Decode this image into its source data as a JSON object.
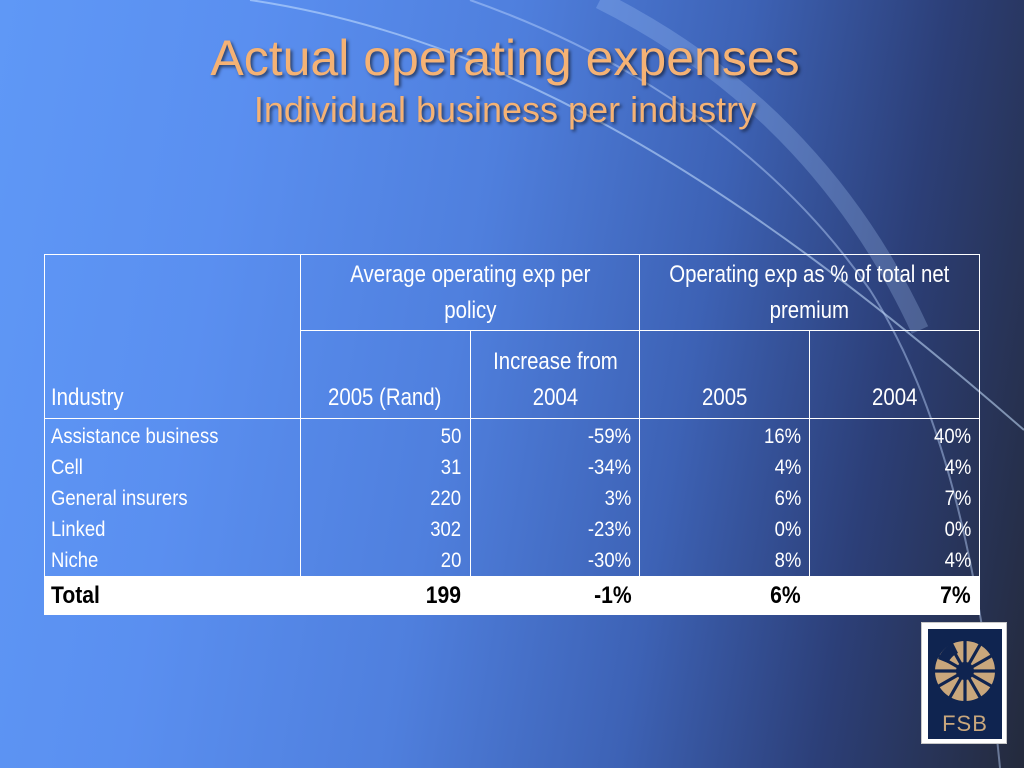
{
  "slide": {
    "title": "Actual operating expenses",
    "subtitle": "Individual business per industry"
  },
  "table": {
    "header_industry": "Industry",
    "group1_label": "Average operating exp per policy",
    "group2_label": "Operating exp as % of total net premium",
    "sub_headers": [
      "2005 (Rand)",
      "Increase from 2004",
      "2005",
      "2004"
    ],
    "rows": [
      {
        "industry": "Assistance business",
        "avg2005": "50",
        "increase": "-59%",
        "pct2005": "16%",
        "pct2004": "40%"
      },
      {
        "industry": "Cell",
        "avg2005": "31",
        "increase": "-34%",
        "pct2005": "4%",
        "pct2004": "4%"
      },
      {
        "industry": "General insurers",
        "avg2005": "220",
        "increase": "3%",
        "pct2005": "6%",
        "pct2004": "7%"
      },
      {
        "industry": "Linked",
        "avg2005": "302",
        "increase": "-23%",
        "pct2005": "0%",
        "pct2004": "0%"
      },
      {
        "industry": "Niche",
        "avg2005": "20",
        "increase": "-30%",
        "pct2005": "8%",
        "pct2004": "4%"
      }
    ],
    "total": {
      "label": "Total",
      "avg2005": "199",
      "increase": "-1%",
      "pct2005": "6%",
      "pct2004": "7%"
    }
  },
  "logo": {
    "text": "FSB",
    "colors": {
      "navy": "#0f2450",
      "gold": "#c9a77c"
    }
  },
  "colors": {
    "title": "#f5b274",
    "background_light": "#5f98f6",
    "background_dark": "#242a3c"
  }
}
